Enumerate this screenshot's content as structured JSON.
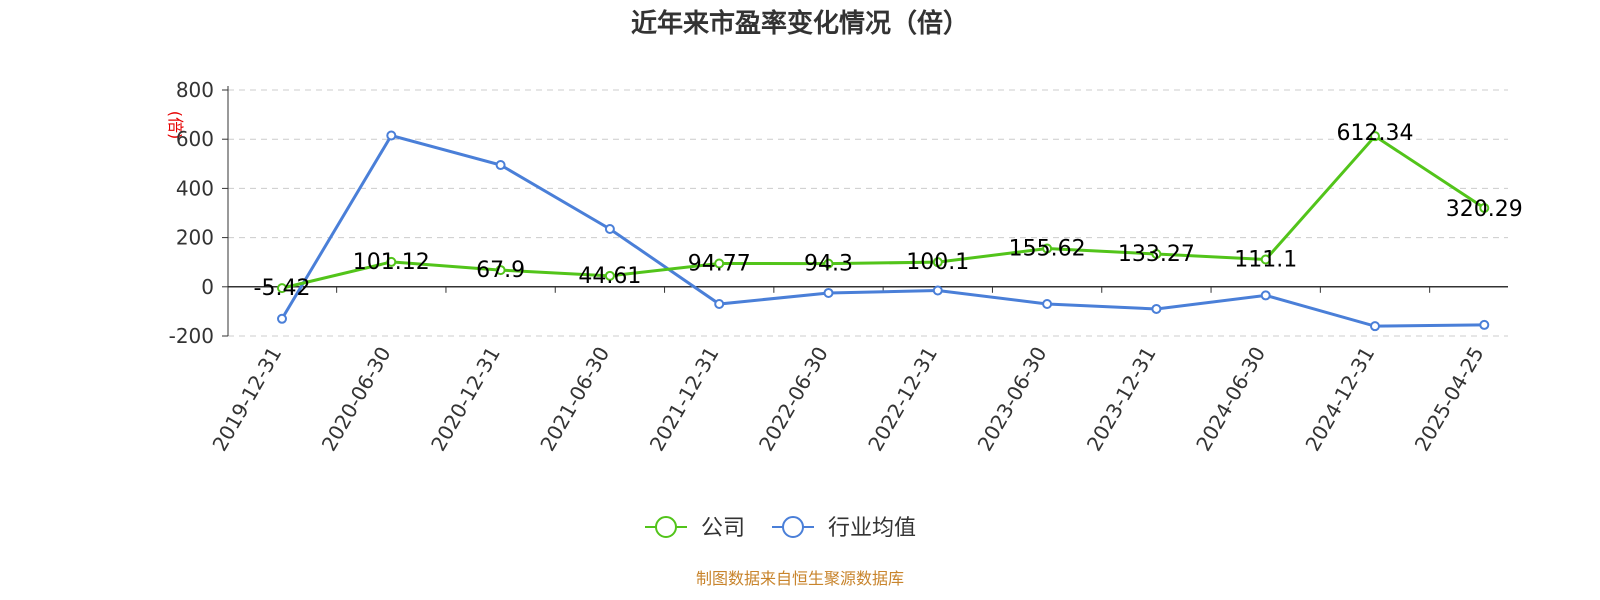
{
  "chart_data": {
    "type": "line",
    "title": "近年来市盈率变化情况（倍）",
    "y_unit": "(倍)",
    "categories": [
      "2019-12-31",
      "2020-06-30",
      "2020-12-31",
      "2021-06-30",
      "2021-12-31",
      "2022-06-30",
      "2022-12-31",
      "2023-06-30",
      "2023-12-31",
      "2024-06-30",
      "2024-12-31",
      "2025-04-25"
    ],
    "ylim": [
      -200,
      800
    ],
    "yticks": [
      "800",
      "600",
      "400",
      "200",
      "0",
      "-200"
    ],
    "grid": true,
    "legend_position": "bottom-center",
    "series": [
      {
        "name": "公司",
        "color": "#52c41a",
        "values": [
          -5.42,
          101.12,
          67.9,
          44.61,
          94.77,
          94.3,
          100.1,
          155.62,
          133.27,
          111.1,
          612.34,
          320.29
        ],
        "labels": [
          "-5.42",
          "101.12",
          "67.9",
          "44.61",
          "94.77",
          "94.3",
          "100.1",
          "155.62",
          "133.27",
          "111.1",
          "612.34",
          "320.29"
        ]
      },
      {
        "name": "行业均值",
        "color": "#4a7fd8",
        "values": [
          -130,
          615,
          495,
          235,
          -70,
          -25,
          -15,
          -70,
          -90,
          -35,
          -160,
          -155
        ]
      }
    ]
  },
  "source": "制图数据来自恒生聚源数据库"
}
